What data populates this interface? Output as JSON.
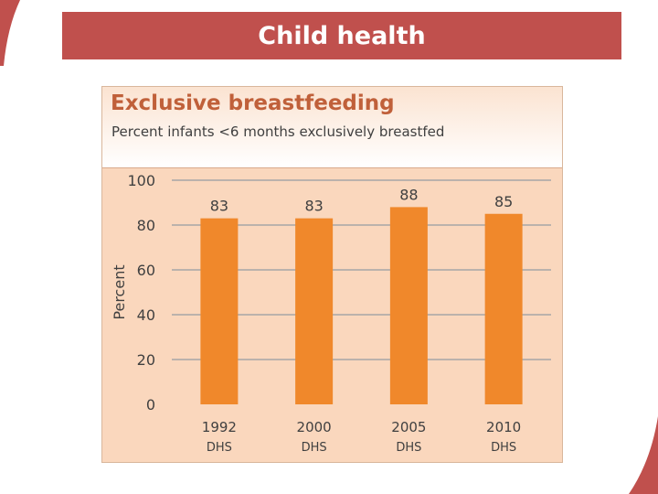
{
  "slide": {
    "title": "Child health"
  },
  "colors": {
    "accent": "#c0504d",
    "bar": "#f0882b",
    "panel": "#fad7bd",
    "grid": "#a6a6a6",
    "title": "#c0603a"
  },
  "chart_data": {
    "type": "bar",
    "title": "Exclusive breastfeeding",
    "subtitle": "Percent infants <6 months exclusively breastfed",
    "ylabel": "Percent",
    "xlabel": "",
    "ylim": [
      0,
      100
    ],
    "yticks": [
      0,
      20,
      40,
      60,
      80,
      100
    ],
    "grid": true,
    "categories": [
      {
        "year": "1992",
        "source": "DHS"
      },
      {
        "year": "2000",
        "source": "DHS"
      },
      {
        "year": "2005",
        "source": "DHS"
      },
      {
        "year": "2010",
        "source": "DHS"
      }
    ],
    "values": [
      83,
      83,
      88,
      85
    ],
    "data_labels": [
      "83",
      "83",
      "88",
      "85"
    ]
  }
}
